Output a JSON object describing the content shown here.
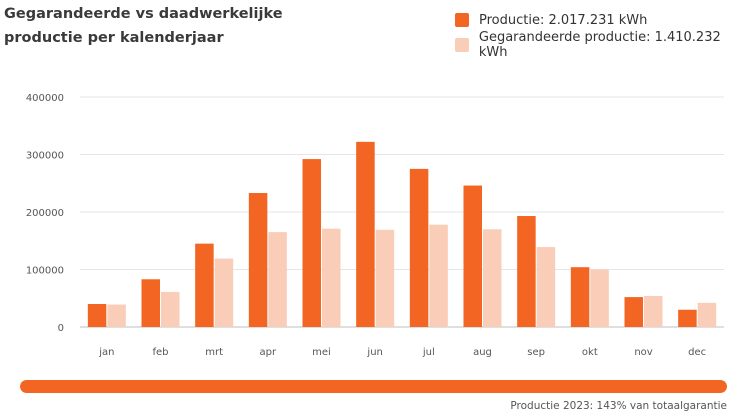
{
  "title": "Gegarandeerde vs daadwerkelijke productie per kalenderjaar",
  "legend": {
    "productie": "Productie: 2.017.231 kWh",
    "gegarandeerd": "Gegarandeerde productie: 1.410.232 kWh"
  },
  "colors": {
    "productie": "#f26522",
    "gegarandeerd": "#f9cdb8",
    "grid": "#e6e6e6"
  },
  "chart_data": {
    "type": "bar",
    "categories": [
      "jan",
      "feb",
      "mrt",
      "apr",
      "mei",
      "jun",
      "jul",
      "aug",
      "sep",
      "okt",
      "nov",
      "dec"
    ],
    "series": [
      {
        "name": "Productie",
        "values": [
          40000,
          83000,
          145000,
          233000,
          292000,
          322000,
          275000,
          246000,
          193000,
          104000,
          52000,
          30000
        ]
      },
      {
        "name": "Gegarandeerde productie",
        "values": [
          39000,
          61000,
          119000,
          165000,
          171000,
          169000,
          178000,
          170000,
          139000,
          100000,
          54000,
          42000
        ]
      }
    ],
    "yticks": [
      "0",
      "100000",
      "200000",
      "300000",
      "400000"
    ],
    "ylim": [
      0,
      400000
    ],
    "grid": true,
    "legend_position": "top-right"
  },
  "progress": {
    "value": 1.0
  },
  "footer": "Productie 2023: 143% van totaalgarantie"
}
